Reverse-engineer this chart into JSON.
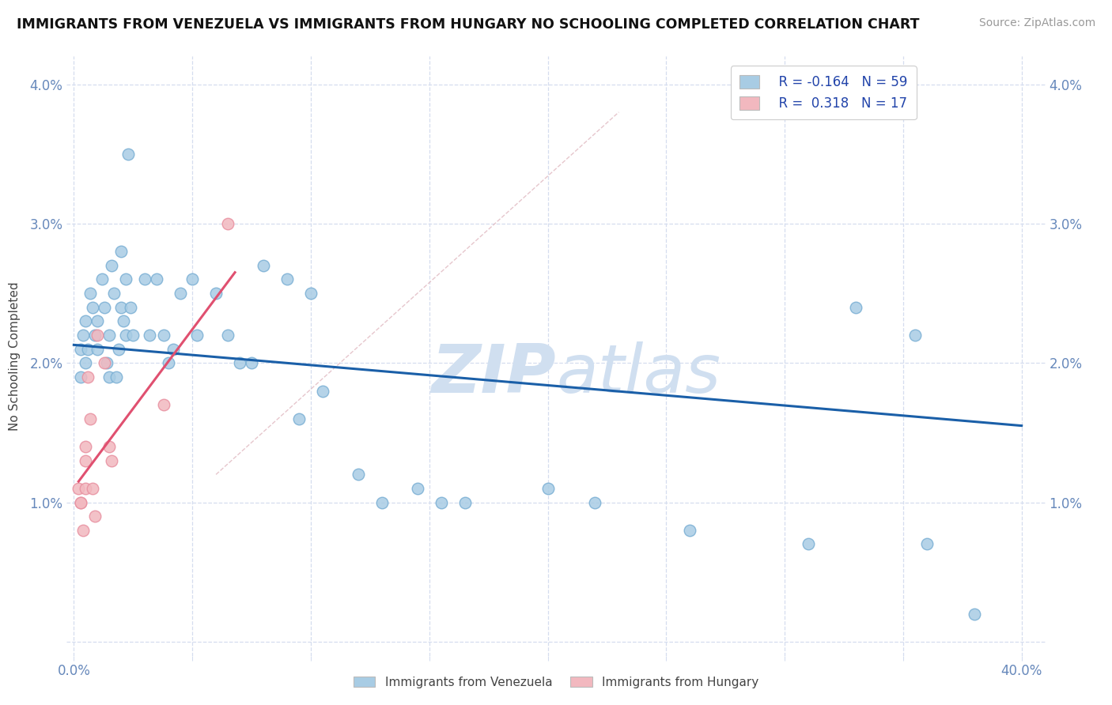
{
  "title": "IMMIGRANTS FROM VENEZUELA VS IMMIGRANTS FROM HUNGARY NO SCHOOLING COMPLETED CORRELATION CHART",
  "source": "Source: ZipAtlas.com",
  "ylabel_label": "No Schooling Completed",
  "x_ticks": [
    0.0,
    0.05,
    0.1,
    0.15,
    0.2,
    0.25,
    0.3,
    0.35,
    0.4
  ],
  "y_ticks": [
    0.0,
    0.01,
    0.02,
    0.03,
    0.04
  ],
  "xlim": [
    -0.003,
    0.41
  ],
  "ylim": [
    -0.001,
    0.042
  ],
  "legend1_R": "-0.164",
  "legend1_N": "59",
  "legend2_R": "0.318",
  "legend2_N": "17",
  "blue_color": "#a8cce4",
  "pink_color": "#f2b8bf",
  "blue_scatter_edge": "#7aafd4",
  "pink_scatter_edge": "#e890a0",
  "blue_line_color": "#1a5fa8",
  "pink_line_color": "#e05070",
  "diag_line_color": "#e0b8c0",
  "watermark_color": "#d0dff0",
  "background_color": "#ffffff",
  "grid_color": "#d5ddef",
  "tick_color": "#6688bb",
  "blue_scatter_x": [
    0.003,
    0.003,
    0.004,
    0.005,
    0.005,
    0.006,
    0.007,
    0.008,
    0.009,
    0.01,
    0.01,
    0.012,
    0.013,
    0.014,
    0.015,
    0.015,
    0.016,
    0.017,
    0.018,
    0.019,
    0.02,
    0.02,
    0.021,
    0.022,
    0.022,
    0.023,
    0.024,
    0.025,
    0.03,
    0.032,
    0.035,
    0.038,
    0.04,
    0.042,
    0.045,
    0.05,
    0.052,
    0.06,
    0.065,
    0.07,
    0.075,
    0.08,
    0.09,
    0.095,
    0.1,
    0.105,
    0.12,
    0.13,
    0.145,
    0.155,
    0.165,
    0.2,
    0.22,
    0.26,
    0.31,
    0.33,
    0.355,
    0.36,
    0.38
  ],
  "blue_scatter_y": [
    0.019,
    0.021,
    0.022,
    0.02,
    0.023,
    0.021,
    0.025,
    0.024,
    0.022,
    0.023,
    0.021,
    0.026,
    0.024,
    0.02,
    0.022,
    0.019,
    0.027,
    0.025,
    0.019,
    0.021,
    0.028,
    0.024,
    0.023,
    0.026,
    0.022,
    0.035,
    0.024,
    0.022,
    0.026,
    0.022,
    0.026,
    0.022,
    0.02,
    0.021,
    0.025,
    0.026,
    0.022,
    0.025,
    0.022,
    0.02,
    0.02,
    0.027,
    0.026,
    0.016,
    0.025,
    0.018,
    0.012,
    0.01,
    0.011,
    0.01,
    0.01,
    0.011,
    0.01,
    0.008,
    0.007,
    0.024,
    0.022,
    0.007,
    0.002
  ],
  "pink_scatter_x": [
    0.002,
    0.003,
    0.003,
    0.004,
    0.005,
    0.005,
    0.005,
    0.006,
    0.007,
    0.008,
    0.009,
    0.01,
    0.013,
    0.015,
    0.016,
    0.038,
    0.065
  ],
  "pink_scatter_y": [
    0.011,
    0.01,
    0.01,
    0.008,
    0.011,
    0.013,
    0.014,
    0.019,
    0.016,
    0.011,
    0.009,
    0.022,
    0.02,
    0.014,
    0.013,
    0.017,
    0.03
  ],
  "blue_line_x": [
    0.0,
    0.4
  ],
  "blue_line_y": [
    0.0213,
    0.0155
  ],
  "pink_line_x": [
    0.002,
    0.068
  ],
  "pink_line_y": [
    0.0115,
    0.0265
  ],
  "diag_line_x": [
    0.06,
    0.23
  ],
  "diag_line_y": [
    0.012,
    0.038
  ]
}
